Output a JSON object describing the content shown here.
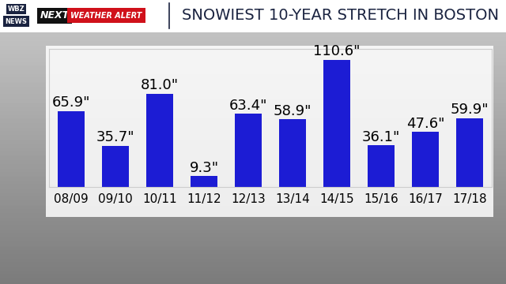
{
  "header": {
    "logo": [
      "WBZ",
      "NEWS"
    ],
    "brand": "NEXT",
    "alert": "WEATHER ALERT"
  },
  "chart_data": {
    "type": "bar",
    "title": "SNOWIEST 10-YEAR STRETCH IN BOSTON",
    "categories": [
      "08/09",
      "09/10",
      "10/11",
      "11/12",
      "12/13",
      "13/14",
      "14/15",
      "15/16",
      "16/17",
      "17/18"
    ],
    "values": [
      65.9,
      35.7,
      81.0,
      9.3,
      63.4,
      58.9,
      110.6,
      36.1,
      47.6,
      59.9
    ],
    "value_labels": [
      "65.9\"",
      "35.7\"",
      "81.0\"",
      "9.3\"",
      "63.4\"",
      "58.9\"",
      "110.6\"",
      "36.1\"",
      "47.6\"",
      "59.9\""
    ],
    "data_labels": true,
    "color": "#1c1cd4",
    "ylim": [
      0,
      120
    ],
    "grid": false,
    "tick_labels": "x"
  }
}
